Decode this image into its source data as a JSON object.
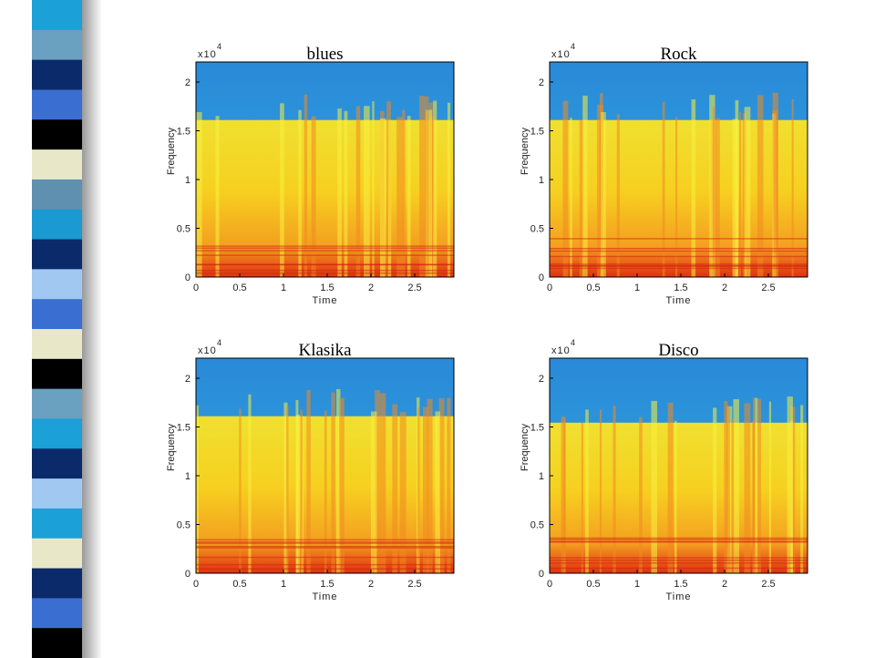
{
  "panels": [
    {
      "title": "blues",
      "exponent_base": "x10",
      "exponent": "4",
      "x_label": "Time",
      "y_label": "Frequency",
      "xticks": [
        "0",
        "0.5",
        "1",
        "1.5",
        "2",
        "2.5"
      ],
      "yticks": [
        "0",
        "0.5",
        "1",
        "1.5",
        "2"
      ]
    },
    {
      "title": "Rock",
      "exponent_base": "x10",
      "exponent": "4",
      "x_label": "Time",
      "y_label": "Frequency",
      "xticks": [
        "0",
        "0.5",
        "1",
        "1.5",
        "2",
        "2.5"
      ],
      "yticks": [
        "0",
        "0.5",
        "1",
        "1.5",
        "2"
      ]
    },
    {
      "title": "Klasika",
      "exponent_base": "x10",
      "exponent": "4",
      "x_label": "Time",
      "y_label": "Frequency",
      "xticks": [
        "0",
        "0.5",
        "1",
        "1.5",
        "2",
        "2.5"
      ],
      "yticks": [
        "0",
        "0.5",
        "1",
        "1.5",
        "2"
      ]
    },
    {
      "title": "Disco",
      "exponent_base": "x10",
      "exponent": "4",
      "x_label": "Time",
      "y_label": "Frequency",
      "xticks": [
        "0",
        "0.5",
        "1",
        "1.5",
        "2",
        "2.5"
      ],
      "yticks": [
        "0",
        "0.5",
        "1",
        "1.5",
        "2"
      ]
    }
  ]
}
